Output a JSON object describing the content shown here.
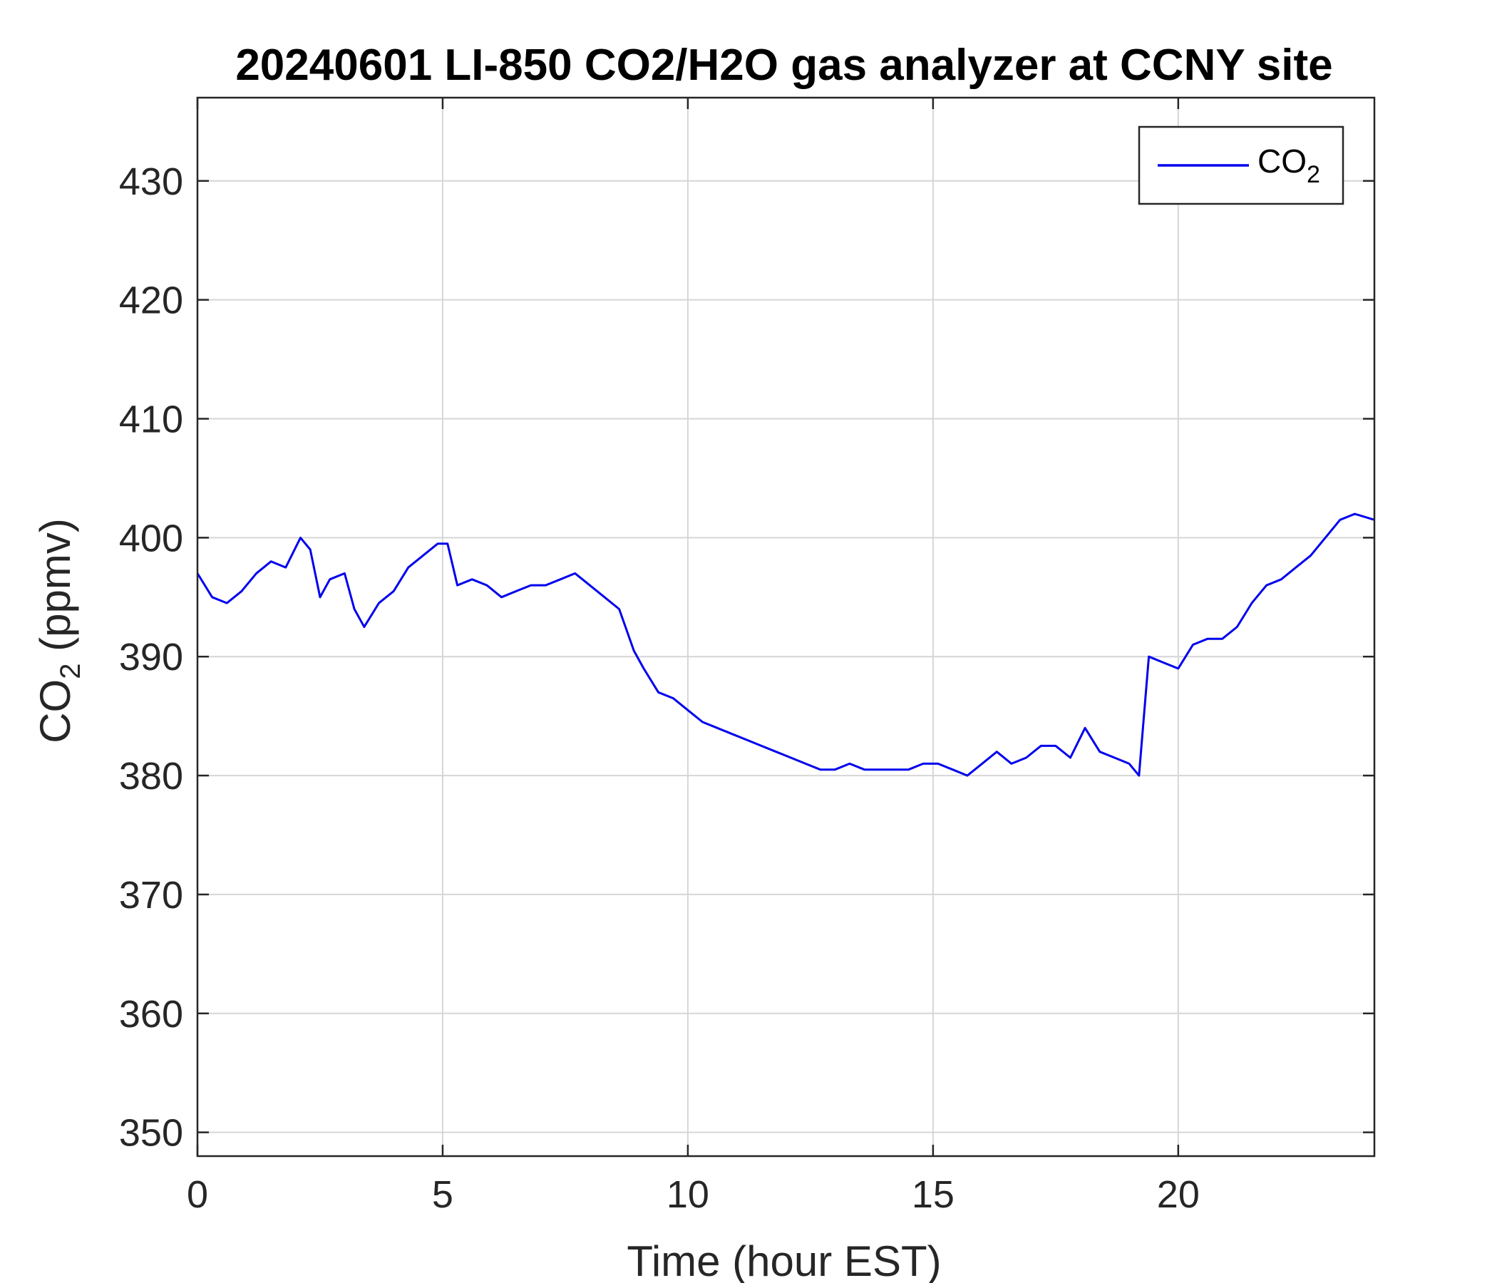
{
  "chart_data": {
    "type": "line",
    "title": "20240601 LI-850 CO2/H2O gas analyzer at CCNY site",
    "xlabel": "Time (hour EST)",
    "ylabel": {
      "base": "CO",
      "sub": "2",
      "rest": " (ppmv)"
    },
    "xlim": [
      0,
      24
    ],
    "ylim": [
      348,
      437
    ],
    "xticks": [
      0,
      5,
      10,
      15,
      20
    ],
    "yticks": [
      350,
      360,
      370,
      380,
      390,
      400,
      410,
      420,
      430
    ],
    "grid": true,
    "legend": {
      "placement": "top-right"
    },
    "series": [
      {
        "name": {
          "base": "CO",
          "sub": "2"
        },
        "color": "#0000ee",
        "x": [
          0,
          0.3,
          0.6,
          0.9,
          1.2,
          1.5,
          1.8,
          2.1,
          2.3,
          2.5,
          2.7,
          3.0,
          3.2,
          3.4,
          3.7,
          4.0,
          4.3,
          4.6,
          4.9,
          5.1,
          5.3,
          5.6,
          5.9,
          6.2,
          6.5,
          6.8,
          7.1,
          7.4,
          7.7,
          8.0,
          8.3,
          8.6,
          8.9,
          9.1,
          9.4,
          9.7,
          10.0,
          10.3,
          10.6,
          10.9,
          11.2,
          11.5,
          11.8,
          12.1,
          12.4,
          12.7,
          13.0,
          13.3,
          13.6,
          13.9,
          14.2,
          14.5,
          14.8,
          15.1,
          15.4,
          15.7,
          16.0,
          16.3,
          16.6,
          16.9,
          17.2,
          17.5,
          17.8,
          18.1,
          18.4,
          18.7,
          19.0,
          19.2,
          19.4,
          19.7,
          20.0,
          20.3,
          20.6,
          20.9,
          21.2,
          21.5,
          21.8,
          22.1,
          22.4,
          22.7,
          23.0,
          23.3,
          23.6,
          24.0
        ],
        "y": [
          397,
          395,
          394.5,
          395.5,
          397,
          398,
          397.5,
          400,
          399,
          395,
          396.5,
          397,
          394,
          392.5,
          394.5,
          395.5,
          397.5,
          398.5,
          399.5,
          399.5,
          396,
          396.5,
          396,
          395,
          395.5,
          396,
          396,
          396.5,
          397,
          396,
          395,
          394,
          390.5,
          389,
          387,
          386.5,
          385.5,
          384.5,
          384,
          383.5,
          383,
          382.5,
          382,
          381.5,
          381,
          380.5,
          380.5,
          381,
          380.5,
          380.5,
          380.5,
          380.5,
          381,
          381,
          380.5,
          380,
          381,
          382,
          381,
          381.5,
          382.5,
          382.5,
          381.5,
          384,
          382,
          381.5,
          381,
          380,
          390,
          389.5,
          389,
          391,
          391.5,
          391.5,
          392.5,
          394.5,
          396,
          396.5,
          397.5,
          398.5,
          400,
          401.5,
          402,
          401.5
        ]
      }
    ]
  }
}
